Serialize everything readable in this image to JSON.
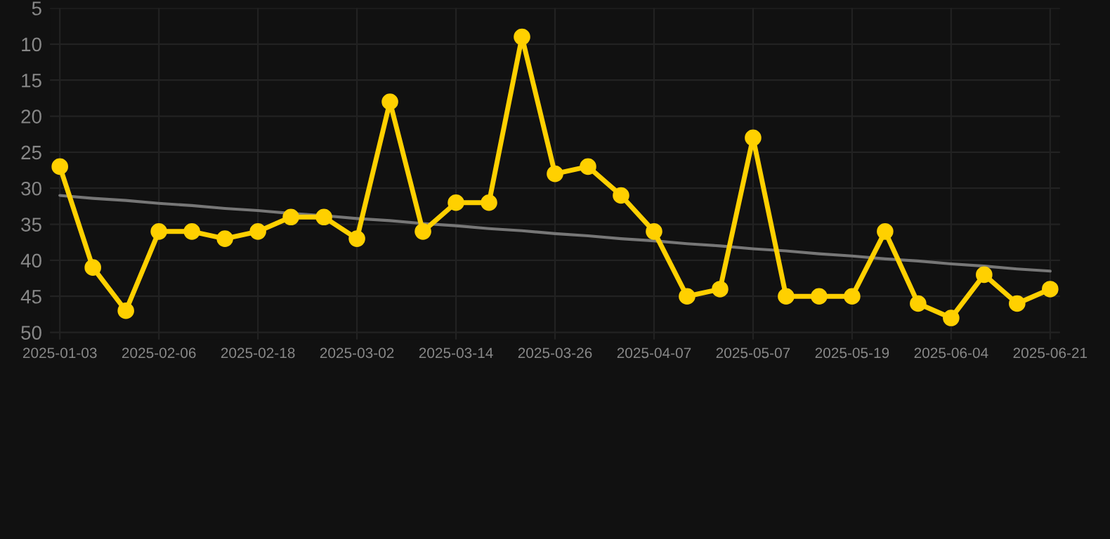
{
  "chart_data": {
    "type": "line",
    "categories": [
      "2025-01-03",
      null,
      null,
      "2025-02-06",
      null,
      null,
      "2025-02-18",
      null,
      null,
      "2025-03-02",
      null,
      null,
      "2025-03-14",
      null,
      null,
      "2025-03-26",
      null,
      null,
      "2025-04-07",
      null,
      null,
      "2025-05-07",
      null,
      null,
      "2025-05-19",
      null,
      null,
      "2025-06-04",
      null,
      null,
      "2025-06-21"
    ],
    "series": [
      {
        "color": "#ffd000",
        "marker": "circle",
        "values": [
          27,
          41,
          47,
          36,
          36,
          37,
          36,
          34,
          34,
          37,
          18,
          36,
          32,
          32,
          9,
          28,
          27,
          31,
          36,
          45,
          44,
          23,
          45,
          45,
          45,
          36,
          46,
          48,
          42,
          46,
          44
        ]
      },
      {
        "color": "#777777",
        "marker": "none",
        "values": [
          31.0,
          31.4,
          31.7,
          32.1,
          32.4,
          32.8,
          33.1,
          33.5,
          33.8,
          34.2,
          34.5,
          34.9,
          35.2,
          35.6,
          35.9,
          36.3,
          36.6,
          37.0,
          37.3,
          37.7,
          38.0,
          38.4,
          38.7,
          39.1,
          39.4,
          39.8,
          40.1,
          40.5,
          40.8,
          41.2,
          41.5
        ]
      }
    ],
    "ylim": [
      51,
      5
    ],
    "yticks": [
      5,
      10,
      15,
      20,
      25,
      30,
      35,
      40,
      45,
      50
    ],
    "grid": true,
    "line_style": "solid"
  }
}
